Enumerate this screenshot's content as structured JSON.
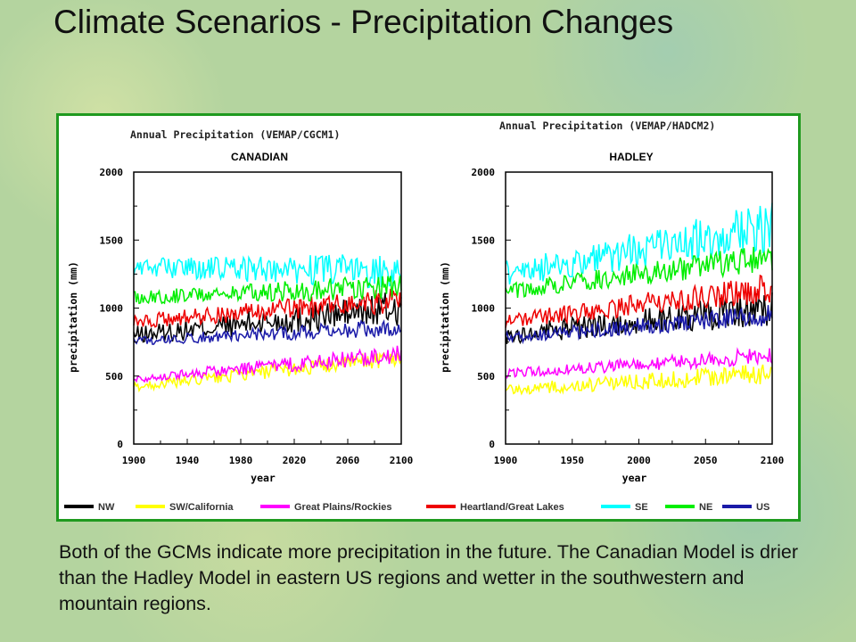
{
  "slide": {
    "title": "Climate Scenarios - Precipitation Changes",
    "caption": "Both of the GCMs indicate more precipitation in the future. The Canadian Model is drier than the Hadley Model in eastern US  regions and wetter in the southwestern and mountain regions."
  },
  "colors": {
    "panel_border": "#1f9a1f",
    "NW": "#000000",
    "SW/California": "#ffff00",
    "Great Plains/Rockies": "#ff00ff",
    "Heartland/Great Lakes": "#ee0000",
    "SE": "#00ffff",
    "NE": "#00ee00",
    "US": "#1a1aa8"
  },
  "legend": [
    {
      "name": "NW",
      "color": "#000000"
    },
    {
      "name": "SW/California",
      "color": "#ffff00"
    },
    {
      "name": "Great Plains/Rockies",
      "color": "#ff00ff"
    },
    {
      "name": "Heartland/Great Lakes",
      "color": "#ee0000"
    },
    {
      "name": "SE",
      "color": "#00ffff"
    },
    {
      "name": "NE",
      "color": "#00ee00"
    },
    {
      "name": "US",
      "color": "#1a1aa8"
    }
  ],
  "chart_data": [
    {
      "type": "line",
      "title": "Annual Precipitation (VEMAP/CGCM1)",
      "subtitle": "CANADIAN",
      "xlabel": "year",
      "ylabel": "precipitation (mm)",
      "xlim": [
        1900,
        2100
      ],
      "ylim": [
        0,
        2000
      ],
      "xticks": [
        1900,
        1940,
        1980,
        2020,
        2060,
        2100
      ],
      "yticks": [
        0,
        500,
        1000,
        1500,
        2000
      ],
      "grid": false,
      "legend_position": "bottom",
      "series": [
        {
          "name": "NW",
          "start": [
            1900,
            800
          ],
          "end": [
            2100,
            1000
          ],
          "noise": 110
        },
        {
          "name": "SW/California",
          "start": [
            1900,
            420
          ],
          "end": [
            2100,
            640
          ],
          "noise": 55
        },
        {
          "name": "Great Plains/Rockies",
          "start": [
            1900,
            480
          ],
          "end": [
            2100,
            660
          ],
          "noise": 55
        },
        {
          "name": "Heartland/Great Lakes",
          "start": [
            1900,
            900
          ],
          "end": [
            2100,
            1060
          ],
          "noise": 80
        },
        {
          "name": "SE",
          "start": [
            1900,
            1300
          ],
          "end": [
            2100,
            1270
          ],
          "noise": 110
        },
        {
          "name": "NE",
          "start": [
            1900,
            1080
          ],
          "end": [
            2100,
            1160
          ],
          "noise": 80
        },
        {
          "name": "US",
          "start": [
            1900,
            760
          ],
          "end": [
            2100,
            860
          ],
          "noise": 55
        }
      ]
    },
    {
      "type": "line",
      "title": "Annual Precipitation (VEMAP/HADCM2)",
      "subtitle": "HADLEY",
      "xlabel": "year",
      "ylabel": "precipitation (mm)",
      "xlim": [
        1900,
        2100
      ],
      "ylim": [
        0,
        2000
      ],
      "xticks": [
        1900,
        1950,
        2000,
        2050,
        2100
      ],
      "yticks": [
        0,
        500,
        1000,
        1500,
        2000
      ],
      "grid": false,
      "legend_position": "bottom",
      "series": [
        {
          "name": "NW",
          "start": [
            1900,
            800
          ],
          "end": [
            2100,
            1000
          ],
          "noise": 110
        },
        {
          "name": "SW/California",
          "start": [
            1900,
            400
          ],
          "end": [
            2100,
            520
          ],
          "noise": 65
        },
        {
          "name": "Great Plains/Rockies",
          "start": [
            1900,
            520
          ],
          "end": [
            2100,
            650
          ],
          "noise": 55
        },
        {
          "name": "Heartland/Great Lakes",
          "start": [
            1900,
            900
          ],
          "end": [
            2100,
            1150
          ],
          "noise": 90
        },
        {
          "name": "SE",
          "start": [
            1900,
            1250
          ],
          "end": [
            2100,
            1600
          ],
          "noise": 150
        },
        {
          "name": "NE",
          "start": [
            1900,
            1120
          ],
          "end": [
            2100,
            1380
          ],
          "noise": 90
        },
        {
          "name": "US",
          "start": [
            1900,
            780
          ],
          "end": [
            2100,
            950
          ],
          "noise": 65
        }
      ]
    }
  ]
}
